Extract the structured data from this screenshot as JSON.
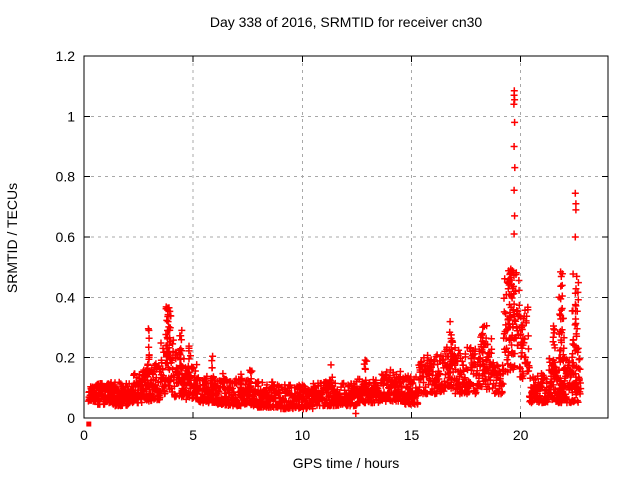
{
  "chart_data": {
    "type": "scatter",
    "title": "Day 338 of 2016, SRMTID for receiver cn30",
    "xlabel": "GPS time / hours",
    "ylabel": "SRMTID / TECUs",
    "xlim": [
      0,
      24
    ],
    "ylim": [
      0,
      1.2
    ],
    "xticks": {
      "values": [
        0,
        5,
        10,
        15,
        20
      ],
      "labels": [
        "0",
        "5",
        "10",
        "15",
        "20"
      ]
    },
    "yticks": {
      "values": [
        0,
        0.2,
        0.4,
        0.6,
        0.8,
        1.0,
        1.2
      ],
      "labels": [
        "0",
        "0.2",
        "0.4",
        "0.6",
        "0.8",
        "1",
        "1.2"
      ]
    },
    "grid": true,
    "grid_color": "#a8a8a8",
    "border_color": "#000000",
    "marker": {
      "glyph": "plus",
      "color": "#ff0000",
      "size": 7
    },
    "seed": 7,
    "bands": [
      [
        0.2,
        0.55,
        0.055,
        0.105,
        30
      ],
      [
        0.55,
        1.2,
        0.045,
        0.115,
        70
      ],
      [
        1.2,
        2.2,
        0.04,
        0.12,
        105
      ],
      [
        2.2,
        2.7,
        0.05,
        0.15,
        55
      ],
      [
        2.7,
        3.1,
        0.055,
        0.165,
        45
      ],
      [
        3.1,
        3.5,
        0.06,
        0.18,
        45
      ],
      [
        3.5,
        4.1,
        0.08,
        0.26,
        60
      ],
      [
        4.1,
        4.6,
        0.07,
        0.22,
        50
      ],
      [
        4.6,
        5.2,
        0.06,
        0.18,
        55
      ],
      [
        5.2,
        5.8,
        0.05,
        0.14,
        55
      ],
      [
        5.8,
        6.1,
        0.05,
        0.14,
        28
      ],
      [
        6.1,
        7.0,
        0.04,
        0.13,
        85
      ],
      [
        7.0,
        7.8,
        0.04,
        0.13,
        78
      ],
      [
        7.8,
        9.0,
        0.035,
        0.12,
        115
      ],
      [
        9.0,
        10.5,
        0.03,
        0.11,
        140
      ],
      [
        10.5,
        11.5,
        0.04,
        0.12,
        95
      ],
      [
        11.5,
        12.5,
        0.04,
        0.12,
        92
      ],
      [
        12.5,
        13.5,
        0.05,
        0.13,
        92
      ],
      [
        13.5,
        14.5,
        0.055,
        0.16,
        88
      ],
      [
        14.5,
        15.3,
        0.045,
        0.145,
        72
      ],
      [
        15.3,
        16.5,
        0.08,
        0.21,
        105
      ],
      [
        16.5,
        17.0,
        0.095,
        0.24,
        48
      ],
      [
        17.0,
        18.0,
        0.08,
        0.235,
        92
      ],
      [
        18.0,
        18.7,
        0.095,
        0.29,
        62
      ],
      [
        18.7,
        19.2,
        0.08,
        0.2,
        42
      ],
      [
        19.2,
        19.75,
        0.15,
        0.48,
        55
      ],
      [
        19.75,
        19.95,
        0.24,
        0.54,
        22
      ],
      [
        19.95,
        20.4,
        0.13,
        0.37,
        38
      ],
      [
        20.4,
        21.3,
        0.05,
        0.15,
        85
      ],
      [
        21.3,
        21.6,
        0.06,
        0.2,
        35
      ],
      [
        21.6,
        22.1,
        0.05,
        0.2,
        65
      ],
      [
        22.1,
        22.75,
        0.05,
        0.2,
        72
      ]
    ],
    "columns": [
      [
        2.85,
        3.0,
        0.14,
        0.3,
        14
      ],
      [
        3.75,
        4.0,
        0.2,
        0.375,
        26
      ],
      [
        4.35,
        4.5,
        0.16,
        0.295,
        12
      ],
      [
        4.75,
        4.9,
        0.14,
        0.25,
        8
      ],
      [
        5.85,
        5.95,
        0.12,
        0.215,
        8
      ],
      [
        6.35,
        6.45,
        0.11,
        0.165,
        5
      ],
      [
        7.15,
        7.25,
        0.1,
        0.165,
        5
      ],
      [
        7.55,
        7.7,
        0.1,
        0.17,
        6
      ],
      [
        11.25,
        11.4,
        0.1,
        0.19,
        6
      ],
      [
        12.8,
        12.95,
        0.11,
        0.21,
        7
      ],
      [
        14.15,
        14.3,
        0.1,
        0.18,
        6
      ],
      [
        16.75,
        16.9,
        0.2,
        0.33,
        9
      ],
      [
        18.25,
        18.45,
        0.18,
        0.32,
        10
      ],
      [
        19.4,
        19.7,
        0.32,
        0.5,
        30
      ],
      [
        20.0,
        20.15,
        0.18,
        0.33,
        10
      ],
      [
        21.45,
        21.6,
        0.1,
        0.33,
        14
      ],
      [
        21.75,
        22.0,
        0.18,
        0.42,
        24
      ],
      [
        21.8,
        21.95,
        0.4,
        0.49,
        6
      ],
      [
        22.35,
        22.65,
        0.2,
        0.5,
        30
      ]
    ],
    "extra_points": [
      [
        12.45,
        0.015
      ],
      [
        19.7,
        0.61
      ],
      [
        19.72,
        0.67
      ],
      [
        19.7,
        0.755
      ],
      [
        19.73,
        0.83
      ],
      [
        19.7,
        0.9
      ],
      [
        19.72,
        0.98
      ],
      [
        19.69,
        1.04
      ],
      [
        19.72,
        1.055
      ],
      [
        19.7,
        1.07
      ],
      [
        19.71,
        1.085
      ],
      [
        22.5,
        0.6
      ],
      [
        22.53,
        0.69
      ],
      [
        22.53,
        0.71
      ],
      [
        22.5,
        0.745
      ]
    ],
    "low_marker": {
      "x": 0.22,
      "y": -0.02
    }
  }
}
